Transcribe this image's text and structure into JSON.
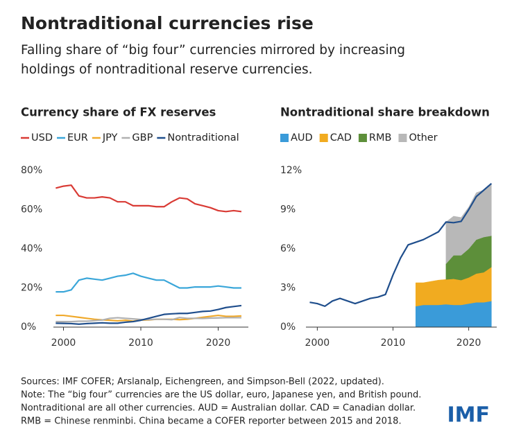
{
  "title": "Nontraditional currencies rise",
  "subtitle": [
    "Falling share of “big four” currencies mirrored by increasing",
    "holdings of nontraditional reserve currencies."
  ],
  "chart_data": [
    {
      "type": "line",
      "title": "Currency share of FX reserves",
      "x": [
        1999,
        2000,
        2001,
        2002,
        2003,
        2004,
        2005,
        2006,
        2007,
        2008,
        2009,
        2010,
        2011,
        2012,
        2013,
        2014,
        2015,
        2016,
        2017,
        2018,
        2019,
        2020,
        2021,
        2022,
        2023
      ],
      "series": [
        {
          "name": "USD",
          "color": "#d93a34",
          "values": [
            71,
            72,
            72.5,
            67,
            66,
            66,
            66.5,
            66,
            64,
            64,
            62,
            62,
            62,
            61.5,
            61.5,
            64,
            66,
            65.5,
            63,
            62,
            61,
            59.5,
            59,
            59.5,
            59
          ]
        },
        {
          "name": "EUR",
          "color": "#3aa6d9",
          "values": [
            18,
            18,
            19,
            24,
            25,
            24.5,
            24,
            25,
            26,
            26.5,
            27.5,
            26,
            25,
            24,
            24,
            22,
            20,
            20,
            20.5,
            20.5,
            20.5,
            21,
            20.5,
            20,
            20
          ]
        },
        {
          "name": "JPY",
          "color": "#f0a92a",
          "values": [
            6,
            6,
            5.5,
            5,
            4.5,
            4,
            3.7,
            3.5,
            3.2,
            3.5,
            3,
            3.6,
            3.6,
            4,
            4,
            4,
            3.8,
            4,
            4.5,
            5,
            5.5,
            6,
            5.5,
            5.5,
            5.7
          ]
        },
        {
          "name": "GBP",
          "color": "#b0b0b0",
          "values": [
            2.8,
            2.8,
            2.8,
            3,
            3,
            3.3,
            3.6,
            4.5,
            4.8,
            4.5,
            4.2,
            3.9,
            3.8,
            4,
            4,
            3.8,
            4.9,
            4.5,
            4.5,
            4.4,
            4.6,
            4.7,
            4.8,
            4.8,
            4.8
          ]
        },
        {
          "name": "Nontraditional",
          "color": "#1f4e8c",
          "values": [
            2,
            1.9,
            1.8,
            1.5,
            1.8,
            2,
            2.2,
            2,
            2,
            2.5,
            2.8,
            3.5,
            4.5,
            5.5,
            6.5,
            6.8,
            7,
            7,
            7.5,
            8,
            8.2,
            9,
            10,
            10.5,
            11
          ]
        }
      ],
      "xlim": [
        1998.7,
        2023.9
      ],
      "xticks": [
        2000,
        2010,
        2020
      ],
      "ylim": [
        0,
        80
      ],
      "yticks": [
        {
          "value": 0,
          "label": "0%"
        },
        {
          "value": 20,
          "label": "20%"
        },
        {
          "value": 40,
          "label": "40%"
        },
        {
          "value": 60,
          "label": "60%"
        },
        {
          "value": 80,
          "label": "80%"
        }
      ],
      "grid": false
    },
    {
      "type": "stacked_area",
      "title": "Nontraditional share breakdown",
      "x": [
        1999,
        2000,
        2001,
        2002,
        2003,
        2004,
        2005,
        2006,
        2007,
        2008,
        2009,
        2010,
        2011,
        2012,
        2013,
        2014,
        2015,
        2016,
        2017,
        2018,
        2019,
        2020,
        2021,
        2022,
        2023
      ],
      "series": [
        {
          "name": "AUD",
          "color": "#3a9bd9",
          "values": [
            null,
            null,
            null,
            null,
            null,
            null,
            null,
            null,
            null,
            null,
            null,
            null,
            null,
            null,
            1.6,
            1.7,
            1.7,
            1.7,
            1.75,
            1.7,
            1.7,
            1.8,
            1.9,
            1.9,
            2.0
          ]
        },
        {
          "name": "CAD",
          "color": "#f1ab20",
          "values": [
            null,
            null,
            null,
            null,
            null,
            null,
            null,
            null,
            null,
            null,
            null,
            null,
            null,
            null,
            1.8,
            1.7,
            1.8,
            1.9,
            1.9,
            2.0,
            1.9,
            2.0,
            2.2,
            2.3,
            2.6
          ]
        },
        {
          "name": "RMB",
          "color": "#5d8f3a",
          "values": [
            null,
            null,
            null,
            null,
            null,
            null,
            null,
            null,
            null,
            null,
            null,
            null,
            null,
            null,
            null,
            null,
            null,
            null,
            1.2,
            1.8,
            1.9,
            2.2,
            2.6,
            2.7,
            2.4
          ]
        },
        {
          "name": "Other",
          "color": "#b8b8b8",
          "values": [
            null,
            null,
            null,
            null,
            null,
            null,
            null,
            null,
            null,
            null,
            null,
            null,
            null,
            null,
            null,
            null,
            null,
            null,
            3.2,
            3.0,
            2.9,
            3.2,
            3.6,
            3.6,
            4.0
          ]
        }
      ],
      "line": {
        "color": "#1f4e8c",
        "values": [
          1.9,
          1.8,
          1.6,
          2.0,
          2.2,
          2.0,
          1.8,
          2.0,
          2.2,
          2.3,
          2.5,
          4.0,
          5.3,
          6.3,
          6.5,
          6.7,
          7.0,
          7.3,
          8.05,
          8.0,
          8.1,
          9.0,
          10.0,
          10.5,
          11.0
        ]
      },
      "xlim": [
        1998.5,
        2023.7
      ],
      "xticks": [
        2000,
        2010,
        2020
      ],
      "ylim": [
        0,
        12
      ],
      "yticks": [
        {
          "value": 0,
          "label": "0%"
        },
        {
          "value": 3,
          "label": "3%"
        },
        {
          "value": 6,
          "label": "6%"
        },
        {
          "value": 9,
          "label": "9%"
        },
        {
          "value": 12,
          "label": "12%"
        }
      ],
      "grid": false
    }
  ],
  "notes": [
    "Sources: IMF COFER; Arslanalp, Eichengreen, and Simpson-Bell (2022, updated).",
    "Note: The “big four” currencies are the US dollar, euro, Japanese yen, and British pound.",
    "Nontraditional are all other currencies. AUD = Australian dollar. CAD = Canadian dollar.",
    "RMB = Chinese renminbi. China became a COFER reporter between 2015 and 2018."
  ],
  "logo": "IMF"
}
